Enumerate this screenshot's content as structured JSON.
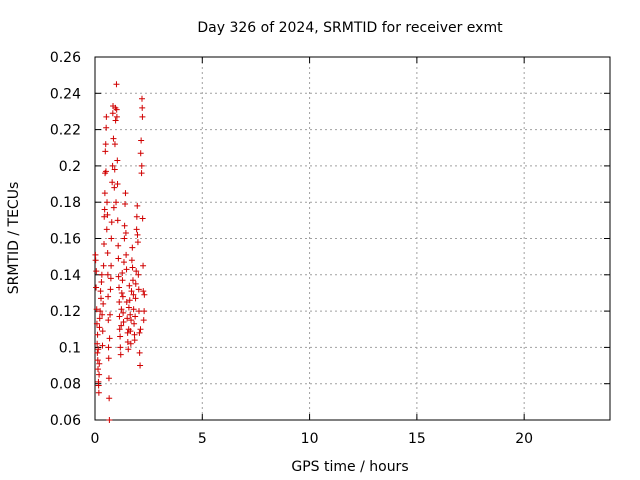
{
  "chart_data": {
    "type": "scatter",
    "title": "Day 326 of 2024, SRMTID for receiver exmt",
    "xlabel": "GPS time / hours",
    "ylabel": "SRMTID / TECUs",
    "xlim": [
      0,
      24
    ],
    "ylim": [
      0.06,
      0.26
    ],
    "xticks": [
      0,
      5,
      10,
      15,
      20
    ],
    "xtick_labels": [
      "0",
      "5",
      "10",
      "15",
      "20"
    ],
    "yticks": [
      0.06,
      0.08,
      0.1,
      0.12,
      0.14,
      0.16,
      0.18,
      0.2,
      0.22,
      0.24,
      0.26
    ],
    "ytick_labels": [
      "0.06",
      "0.08",
      "0.1",
      "0.12",
      "0.14",
      "0.16",
      "0.18",
      "0.2",
      "0.22",
      "0.24",
      "0.26"
    ],
    "grid": true,
    "marker": "+",
    "color": "#d00000",
    "series": [
      {
        "name": "SRMTID",
        "points": [
          [
            0.02,
            0.151
          ],
          [
            0.03,
            0.148
          ],
          [
            0.05,
            0.133
          ],
          [
            0.06,
            0.142
          ],
          [
            0.08,
            0.121
          ],
          [
            0.09,
            0.113
          ],
          [
            0.1,
            0.102
          ],
          [
            0.11,
            0.097
          ],
          [
            0.12,
            0.107
          ],
          [
            0.13,
            0.093
          ],
          [
            0.14,
            0.088
          ],
          [
            0.15,
            0.099
          ],
          [
            0.16,
            0.081
          ],
          [
            0.17,
            0.079
          ],
          [
            0.18,
            0.075
          ],
          [
            0.19,
            0.085
          ],
          [
            0.2,
            0.091
          ],
          [
            0.21,
            0.111
          ],
          [
            0.22,
            0.116
          ],
          [
            0.24,
            0.12
          ],
          [
            0.26,
            0.131
          ],
          [
            0.28,
            0.127
          ],
          [
            0.3,
            0.136
          ],
          [
            0.32,
            0.14
          ],
          [
            0.33,
            0.118
          ],
          [
            0.35,
            0.101
          ],
          [
            0.36,
            0.109
          ],
          [
            0.38,
            0.124
          ],
          [
            0.4,
            0.145
          ],
          [
            0.42,
            0.157
          ],
          [
            0.43,
            0.172
          ],
          [
            0.45,
            0.176
          ],
          [
            0.46,
            0.185
          ],
          [
            0.47,
            0.196
          ],
          [
            0.48,
            0.208
          ],
          [
            0.5,
            0.212
          ],
          [
            0.51,
            0.197
          ],
          [
            0.52,
            0.221
          ],
          [
            0.53,
            0.227
          ],
          [
            0.55,
            0.165
          ],
          [
            0.56,
            0.18
          ],
          [
            0.58,
            0.173
          ],
          [
            0.59,
            0.152
          ],
          [
            0.6,
            0.14
          ],
          [
            0.61,
            0.128
          ],
          [
            0.62,
            0.115
          ],
          [
            0.63,
            0.1
          ],
          [
            0.64,
            0.094
          ],
          [
            0.65,
            0.083
          ],
          [
            0.66,
            0.072
          ],
          [
            0.67,
            0.06
          ],
          [
            0.68,
            0.105
          ],
          [
            0.7,
            0.118
          ],
          [
            0.72,
            0.132
          ],
          [
            0.74,
            0.138
          ],
          [
            0.75,
            0.145
          ],
          [
            0.76,
            0.16
          ],
          [
            0.78,
            0.169
          ],
          [
            0.8,
            0.191
          ],
          [
            0.82,
            0.2
          ],
          [
            0.83,
            0.229
          ],
          [
            0.84,
            0.233
          ],
          [
            0.86,
            0.215
          ],
          [
            0.88,
            0.177
          ],
          [
            0.9,
            0.188
          ],
          [
            0.92,
            0.198
          ],
          [
            0.93,
            0.212
          ],
          [
            0.95,
            0.232
          ],
          [
            0.96,
            0.225
          ],
          [
            0.98,
            0.18
          ],
          [
            1.0,
            0.245
          ],
          [
            1.01,
            0.231
          ],
          [
            1.02,
            0.227
          ],
          [
            1.04,
            0.203
          ],
          [
            1.05,
            0.19
          ],
          [
            1.06,
            0.17
          ],
          [
            1.08,
            0.156
          ],
          [
            1.09,
            0.149
          ],
          [
            1.1,
            0.139
          ],
          [
            1.12,
            0.133
          ],
          [
            1.13,
            0.125
          ],
          [
            1.14,
            0.117
          ],
          [
            1.15,
            0.11
          ],
          [
            1.17,
            0.106
          ],
          [
            1.18,
            0.1
          ],
          [
            1.2,
            0.096
          ],
          [
            1.22,
            0.112
          ],
          [
            1.23,
            0.121
          ],
          [
            1.25,
            0.13
          ],
          [
            1.27,
            0.141
          ],
          [
            1.28,
            0.137
          ],
          [
            1.3,
            0.128
          ],
          [
            1.31,
            0.119
          ],
          [
            1.33,
            0.114
          ],
          [
            1.35,
            0.147
          ],
          [
            1.37,
            0.16
          ],
          [
            1.38,
            0.167
          ],
          [
            1.4,
            0.179
          ],
          [
            1.42,
            0.185
          ],
          [
            1.44,
            0.163
          ],
          [
            1.45,
            0.151
          ],
          [
            1.47,
            0.143
          ],
          [
            1.48,
            0.125
          ],
          [
            1.5,
            0.116
          ],
          [
            1.52,
            0.108
          ],
          [
            1.53,
            0.103
          ],
          [
            1.55,
            0.099
          ],
          [
            1.57,
            0.11
          ],
          [
            1.58,
            0.122
          ],
          [
            1.6,
            0.134
          ],
          [
            1.62,
            0.126
          ],
          [
            1.64,
            0.118
          ],
          [
            1.65,
            0.109
          ],
          [
            1.67,
            0.102
          ],
          [
            1.68,
            0.115
          ],
          [
            1.7,
            0.131
          ],
          [
            1.72,
            0.148
          ],
          [
            1.74,
            0.155
          ],
          [
            1.75,
            0.144
          ],
          [
            1.77,
            0.137
          ],
          [
            1.79,
            0.129
          ],
          [
            1.8,
            0.121
          ],
          [
            1.82,
            0.113
          ],
          [
            1.84,
            0.107
          ],
          [
            1.85,
            0.104
          ],
          [
            1.87,
            0.117
          ],
          [
            1.89,
            0.127
          ],
          [
            1.9,
            0.135
          ],
          [
            1.92,
            0.142
          ],
          [
            1.94,
            0.165
          ],
          [
            1.95,
            0.172
          ],
          [
            1.97,
            0.178
          ],
          [
            1.98,
            0.162
          ],
          [
            2.0,
            0.158
          ],
          [
            2.02,
            0.14
          ],
          [
            2.04,
            0.132
          ],
          [
            2.05,
            0.12
          ],
          [
            2.07,
            0.108
          ],
          [
            2.08,
            0.097
          ],
          [
            2.1,
            0.09
          ],
          [
            2.12,
            0.11
          ],
          [
            2.13,
            0.207
          ],
          [
            2.15,
            0.214
          ],
          [
            2.17,
            0.196
          ],
          [
            2.18,
            0.2
          ],
          [
            2.19,
            0.237
          ],
          [
            2.2,
            0.232
          ],
          [
            2.21,
            0.227
          ],
          [
            2.22,
            0.171
          ],
          [
            2.24,
            0.145
          ],
          [
            2.25,
            0.131
          ],
          [
            2.27,
            0.115
          ],
          [
            2.29,
            0.12
          ],
          [
            2.3,
            0.129
          ]
        ]
      }
    ]
  }
}
